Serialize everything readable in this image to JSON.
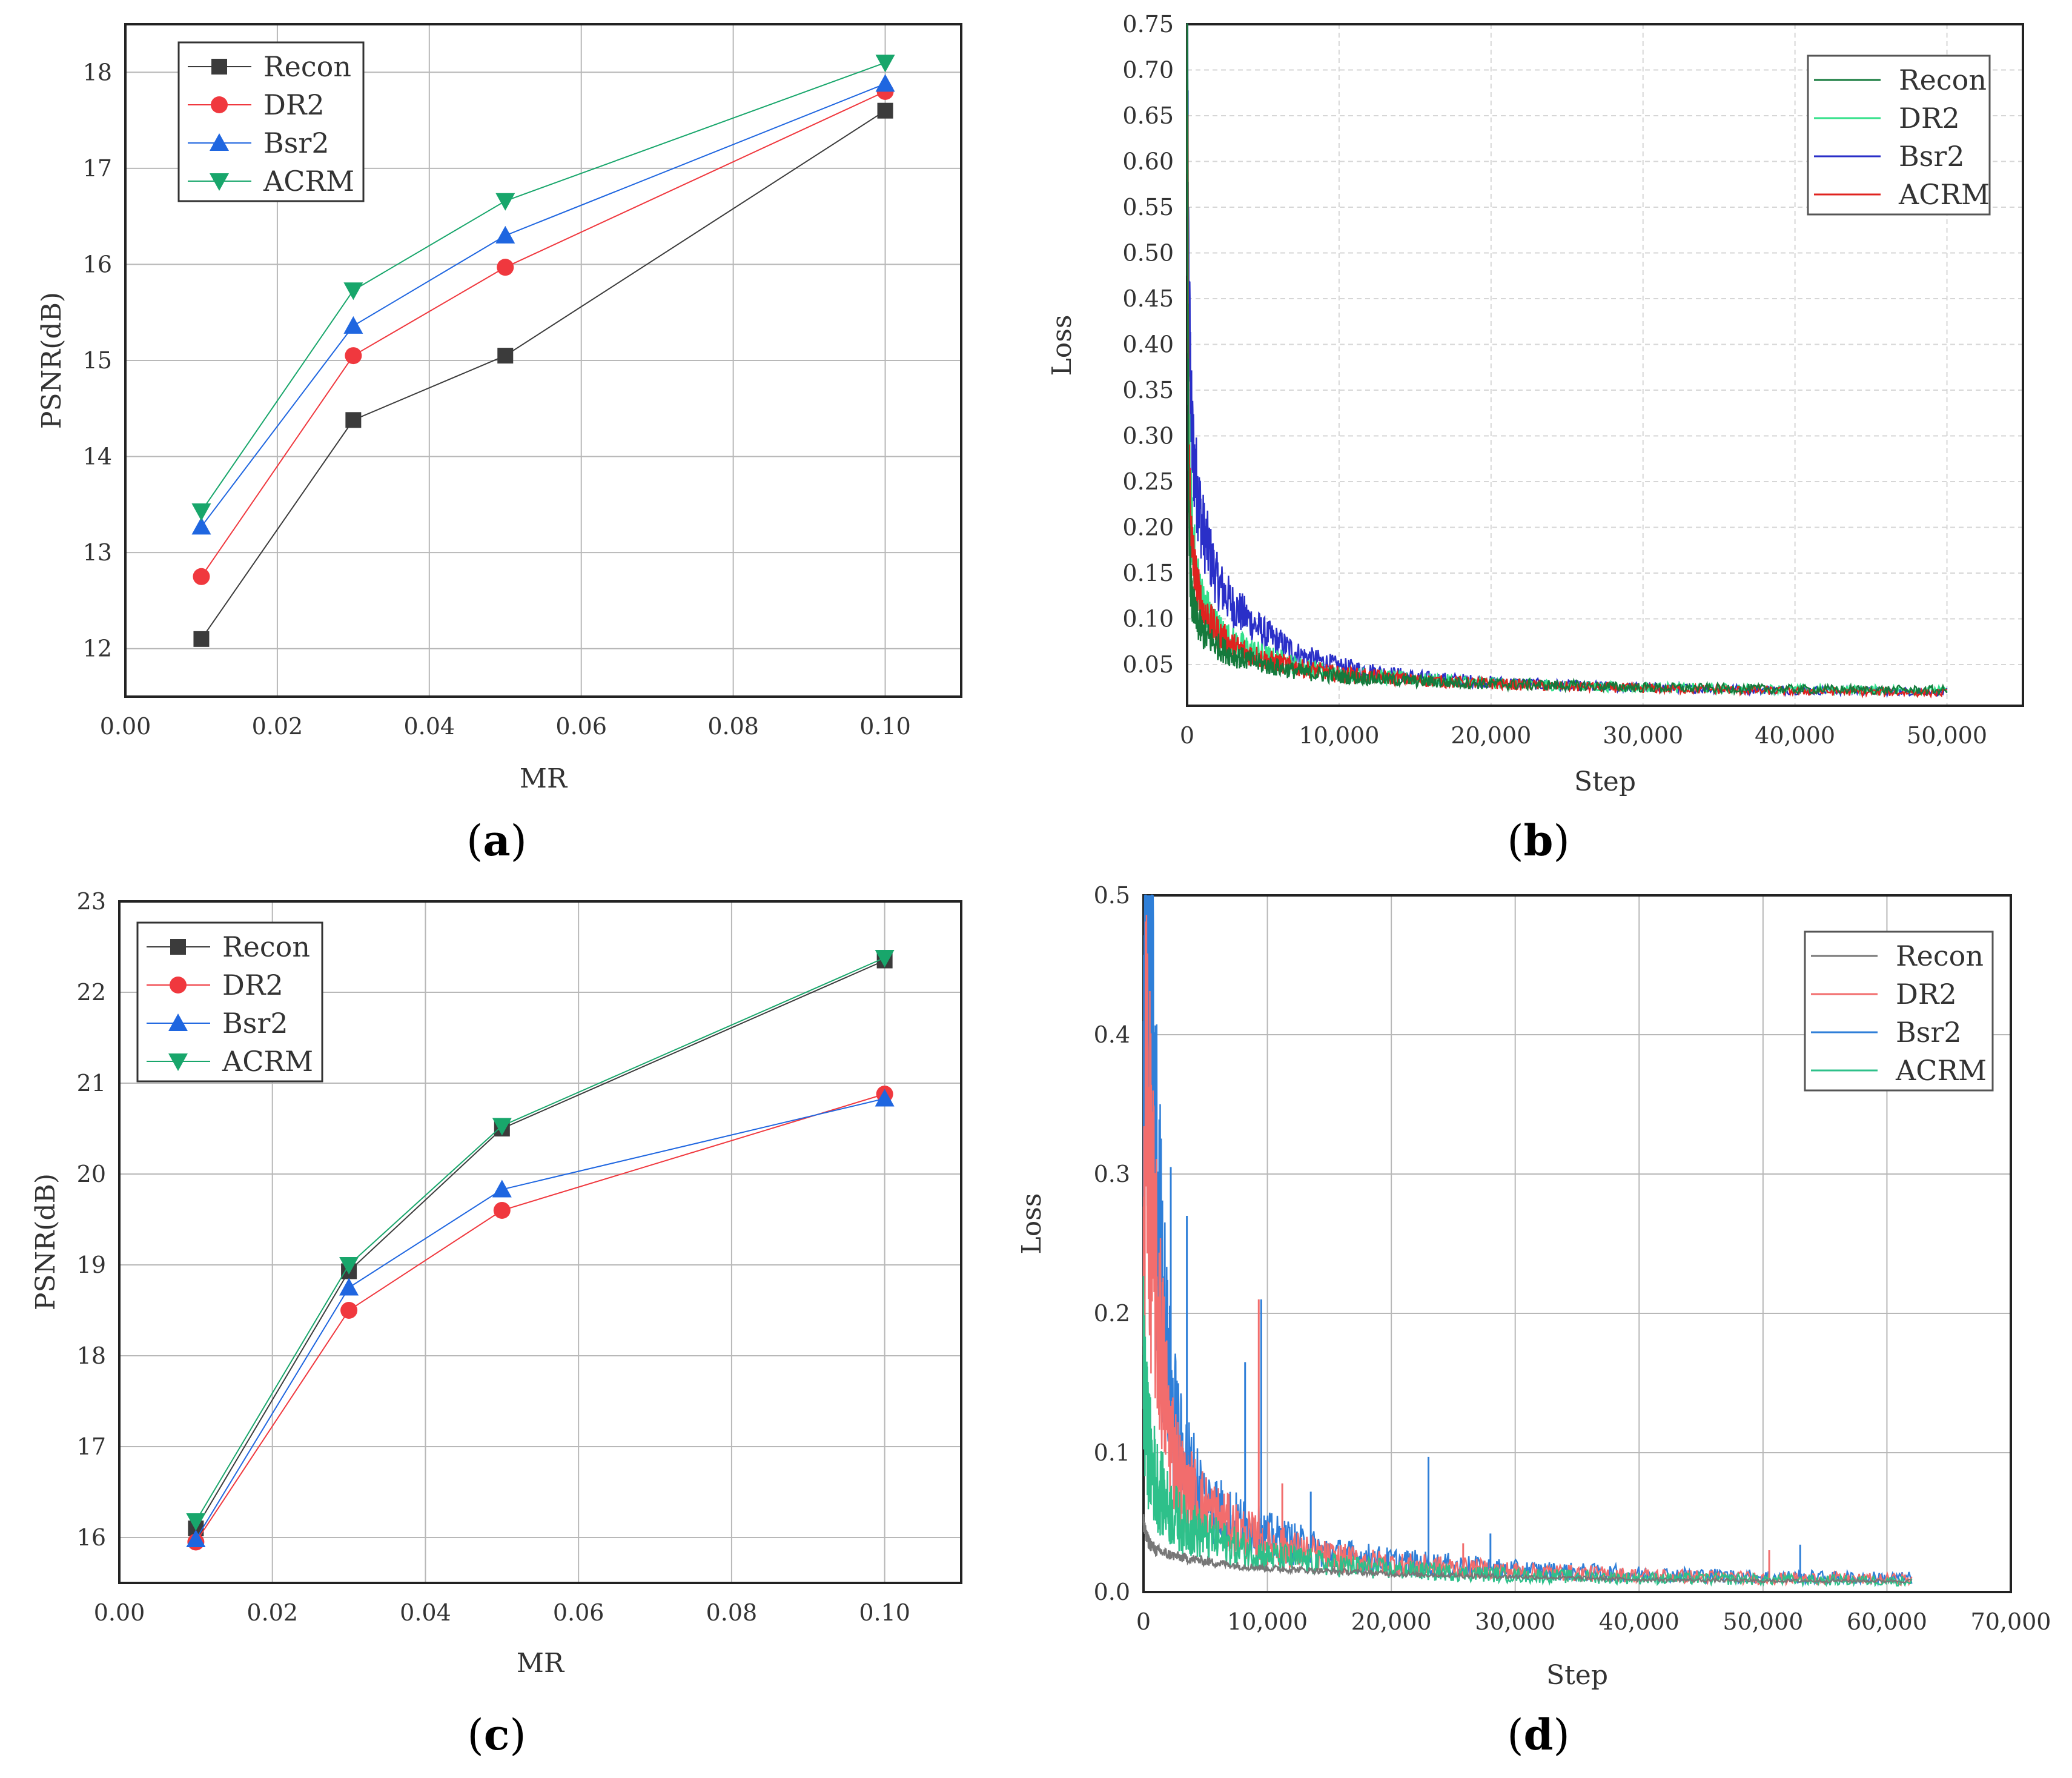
{
  "colors": {
    "recon": "#3b3b3b",
    "dr2": "#f0383e",
    "bsr2": "#1f66e0",
    "acrm": "#18a66b",
    "recon_line_b": "#157a3c",
    "dr2_line_b": "#33e08a",
    "bsr2_line_b": "#2a2fc8",
    "acrm_line_b": "#e0231f",
    "recon_line_d": "#777777",
    "dr2_line_d": "#f26d6d",
    "bsr2_line_d": "#2f7fd8",
    "acrm_line_d": "#2ec08a",
    "grid": "#b8b8b8"
  },
  "panels": {
    "a": {
      "label": "a"
    },
    "b": {
      "label": "b"
    },
    "c": {
      "label": "c"
    },
    "d": {
      "label": "d"
    }
  },
  "chart_data": [
    {
      "panel": "a",
      "type": "line",
      "xlabel": "MR",
      "ylabel": "PSNR(dB)",
      "xlim": [
        0.0,
        0.11
      ],
      "ylim": [
        11.5,
        18.5
      ],
      "xticks": [
        "0.00",
        "0.02",
        "0.04",
        "0.06",
        "0.08",
        "0.10"
      ],
      "yticks": [
        "12",
        "13",
        "14",
        "15",
        "16",
        "17",
        "18"
      ],
      "grid": true,
      "legend_position": "top-left",
      "x": [
        0.01,
        0.03,
        0.05,
        0.1
      ],
      "series": [
        {
          "name": "Recon",
          "marker": "square",
          "values": [
            12.1,
            14.38,
            15.05,
            17.6
          ]
        },
        {
          "name": "DR2",
          "marker": "circle",
          "values": [
            12.75,
            15.05,
            15.97,
            17.8
          ]
        },
        {
          "name": "Bsr2",
          "marker": "triangle-up",
          "values": [
            13.27,
            15.36,
            16.3,
            17.88
          ]
        },
        {
          "name": "ACRM",
          "marker": "triangle-down",
          "values": [
            13.43,
            15.73,
            16.66,
            18.1
          ]
        }
      ]
    },
    {
      "panel": "b",
      "type": "line",
      "xlabel": "Step",
      "ylabel": "Loss",
      "xlim": [
        0,
        55000
      ],
      "ylim": [
        0.005,
        0.75
      ],
      "xticks": [
        "0",
        "10,000",
        "20,000",
        "30,000",
        "40,000",
        "50,000"
      ],
      "yticks": [
        "0.05",
        "0.10",
        "0.15",
        "0.20",
        "0.25",
        "0.30",
        "0.35",
        "0.40",
        "0.45",
        "0.50",
        "0.55",
        "0.60",
        "0.65",
        "0.70",
        "0.75"
      ],
      "grid": true,
      "legend_position": "top-right",
      "x": [
        0,
        100,
        300,
        600,
        1000,
        2000,
        3000,
        5000,
        7500,
        10000,
        15000,
        20000,
        25000,
        30000,
        40000,
        50000
      ],
      "series": [
        {
          "name": "Recon",
          "values": [
            0.75,
            0.2,
            0.12,
            0.1,
            0.085,
            0.07,
            0.06,
            0.05,
            0.042,
            0.037,
            0.032,
            0.029,
            0.027,
            0.025,
            0.023,
            0.022
          ]
        },
        {
          "name": "DR2",
          "values": [
            0.75,
            0.3,
            0.2,
            0.15,
            0.12,
            0.09,
            0.075,
            0.06,
            0.048,
            0.04,
            0.034,
            0.03,
            0.027,
            0.025,
            0.023,
            0.022
          ]
        },
        {
          "name": "Bsr2",
          "values": [
            0.75,
            0.45,
            0.3,
            0.25,
            0.2,
            0.14,
            0.115,
            0.085,
            0.06,
            0.048,
            0.036,
            0.031,
            0.027,
            0.025,
            0.022,
            0.02
          ]
        },
        {
          "name": "ACRM",
          "values": [
            0.75,
            0.28,
            0.18,
            0.14,
            0.11,
            0.085,
            0.07,
            0.056,
            0.046,
            0.04,
            0.033,
            0.029,
            0.026,
            0.024,
            0.021,
            0.019
          ]
        }
      ]
    },
    {
      "panel": "c",
      "type": "line",
      "xlabel": "MR",
      "ylabel": "PSNR(dB)",
      "xlim": [
        0.0,
        0.11
      ],
      "ylim": [
        15.5,
        23.0
      ],
      "xticks": [
        "0.00",
        "0.02",
        "0.04",
        "0.06",
        "0.08",
        "0.10"
      ],
      "yticks": [
        "16",
        "17",
        "18",
        "19",
        "20",
        "21",
        "22",
        "23"
      ],
      "grid": true,
      "legend_position": "top-left",
      "x": [
        0.01,
        0.03,
        0.05,
        0.1
      ],
      "series": [
        {
          "name": "Recon",
          "marker": "square",
          "values": [
            16.1,
            18.93,
            20.5,
            22.35
          ]
        },
        {
          "name": "DR2",
          "marker": "circle",
          "values": [
            15.95,
            18.5,
            19.6,
            20.88
          ]
        },
        {
          "name": "Bsr2",
          "marker": "triangle-up",
          "values": [
            15.98,
            18.75,
            19.83,
            20.83
          ]
        },
        {
          "name": "ACRM",
          "marker": "triangle-down",
          "values": [
            16.18,
            19.0,
            20.53,
            22.38
          ]
        }
      ]
    },
    {
      "panel": "d",
      "type": "line",
      "xlabel": "Step",
      "ylabel": "Loss",
      "xlim": [
        0,
        70000
      ],
      "ylim": [
        0.0,
        0.5
      ],
      "xticks": [
        "0",
        "10,000",
        "20,000",
        "30,000",
        "40,000",
        "50,000",
        "60,000",
        "70,000"
      ],
      "yticks": [
        "0.0",
        "0.1",
        "0.2",
        "0.3",
        "0.4",
        "0.5"
      ],
      "grid": true,
      "legend_position": "top-right",
      "x": [
        0,
        200,
        500,
        1000,
        2000,
        3000,
        5000,
        7500,
        10000,
        15000,
        20000,
        30000,
        40000,
        50000,
        62000
      ],
      "series": [
        {
          "name": "Recon",
          "values": [
            0.05,
            0.04,
            0.035,
            0.03,
            0.027,
            0.025,
            0.022,
            0.019,
            0.017,
            0.015,
            0.013,
            0.011,
            0.009,
            0.008,
            0.008
          ]
        },
        {
          "name": "DR2",
          "values": [
            0.2,
            0.38,
            0.3,
            0.22,
            0.12,
            0.08,
            0.06,
            0.045,
            0.035,
            0.025,
            0.02,
            0.015,
            0.012,
            0.01,
            0.009
          ]
        },
        {
          "name": "Bsr2",
          "values": [
            0.3,
            0.5,
            0.45,
            0.3,
            0.15,
            0.1,
            0.065,
            0.05,
            0.04,
            0.028,
            0.022,
            0.016,
            0.013,
            0.011,
            0.01
          ]
        },
        {
          "name": "ACRM",
          "values": [
            0.16,
            0.12,
            0.1,
            0.08,
            0.06,
            0.05,
            0.04,
            0.032,
            0.026,
            0.02,
            0.016,
            0.012,
            0.01,
            0.009,
            0.008
          ]
        }
      ],
      "spikes": [
        {
          "series": "Bsr2",
          "x": 2200,
          "y": 0.305
        },
        {
          "series": "Bsr2",
          "x": 3500,
          "y": 0.27
        },
        {
          "series": "Bsr2",
          "x": 8200,
          "y": 0.165
        },
        {
          "series": "Bsr2",
          "x": 9500,
          "y": 0.21
        },
        {
          "series": "Bsr2",
          "x": 13500,
          "y": 0.072
        },
        {
          "series": "Bsr2",
          "x": 23000,
          "y": 0.097
        },
        {
          "series": "Bsr2",
          "x": 28000,
          "y": 0.042
        },
        {
          "series": "Bsr2",
          "x": 53000,
          "y": 0.034
        },
        {
          "series": "DR2",
          "x": 9300,
          "y": 0.21
        },
        {
          "series": "DR2",
          "x": 11200,
          "y": 0.078
        },
        {
          "series": "DR2",
          "x": 25800,
          "y": 0.035
        },
        {
          "series": "DR2",
          "x": 50500,
          "y": 0.03
        }
      ]
    }
  ]
}
